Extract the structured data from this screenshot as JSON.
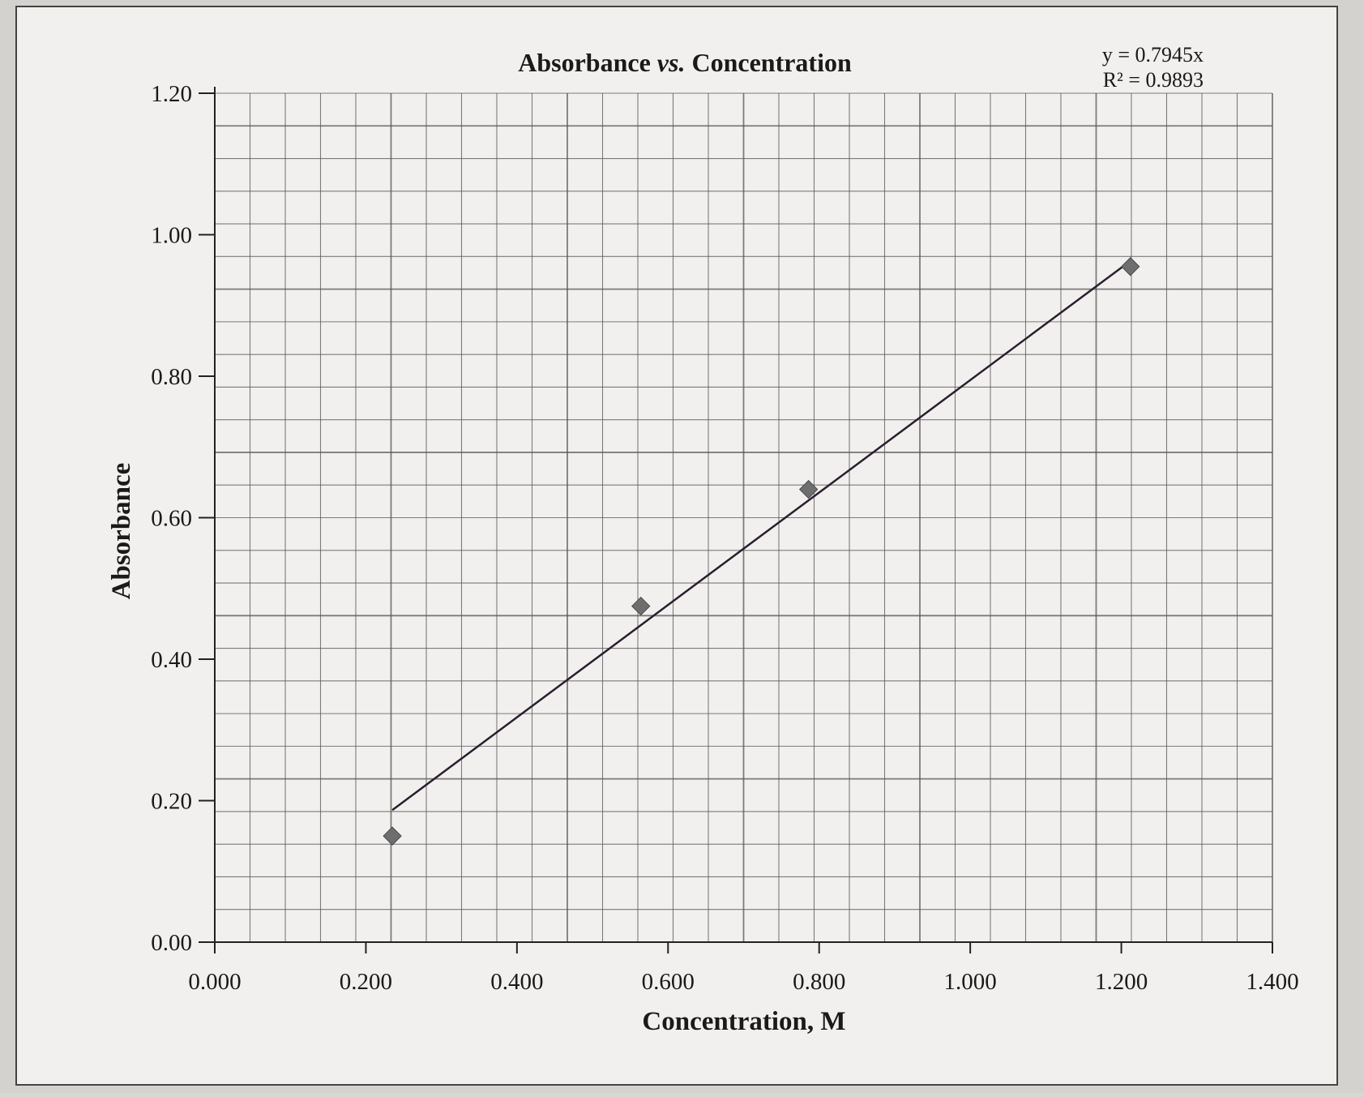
{
  "chart_data": {
    "type": "scatter",
    "title_main": "Absorbance ",
    "title_vs": "vs.",
    "title_rest": " Concentration",
    "xlabel": "Concentration, M",
    "ylabel": "Absorbance",
    "xlim": [
      0,
      1.4
    ],
    "ylim": [
      0,
      1.2
    ],
    "x_ticks": [
      "0.000",
      "0.200",
      "0.400",
      "0.600",
      "0.800",
      "1.000",
      "1.200",
      "1.400"
    ],
    "y_ticks": [
      "0.00",
      "0.20",
      "0.40",
      "0.60",
      "0.80",
      "1.00",
      "1.20"
    ],
    "grid": true,
    "series": [
      {
        "x": [
          0.235,
          0.564,
          0.786,
          1.212
        ],
        "y": [
          0.15,
          0.475,
          0.64,
          0.955
        ]
      }
    ],
    "trendline": {
      "slope": 0.7945,
      "x_range": [
        0.235,
        1.212
      ],
      "equation": "y = 0.7945x",
      "r_squared": "R² = 0.9893"
    },
    "colors": {
      "marker": "#6e6e6e",
      "trendline": "#2a1f2e",
      "grid": "#555555",
      "paper": "#f1f0ee"
    }
  }
}
